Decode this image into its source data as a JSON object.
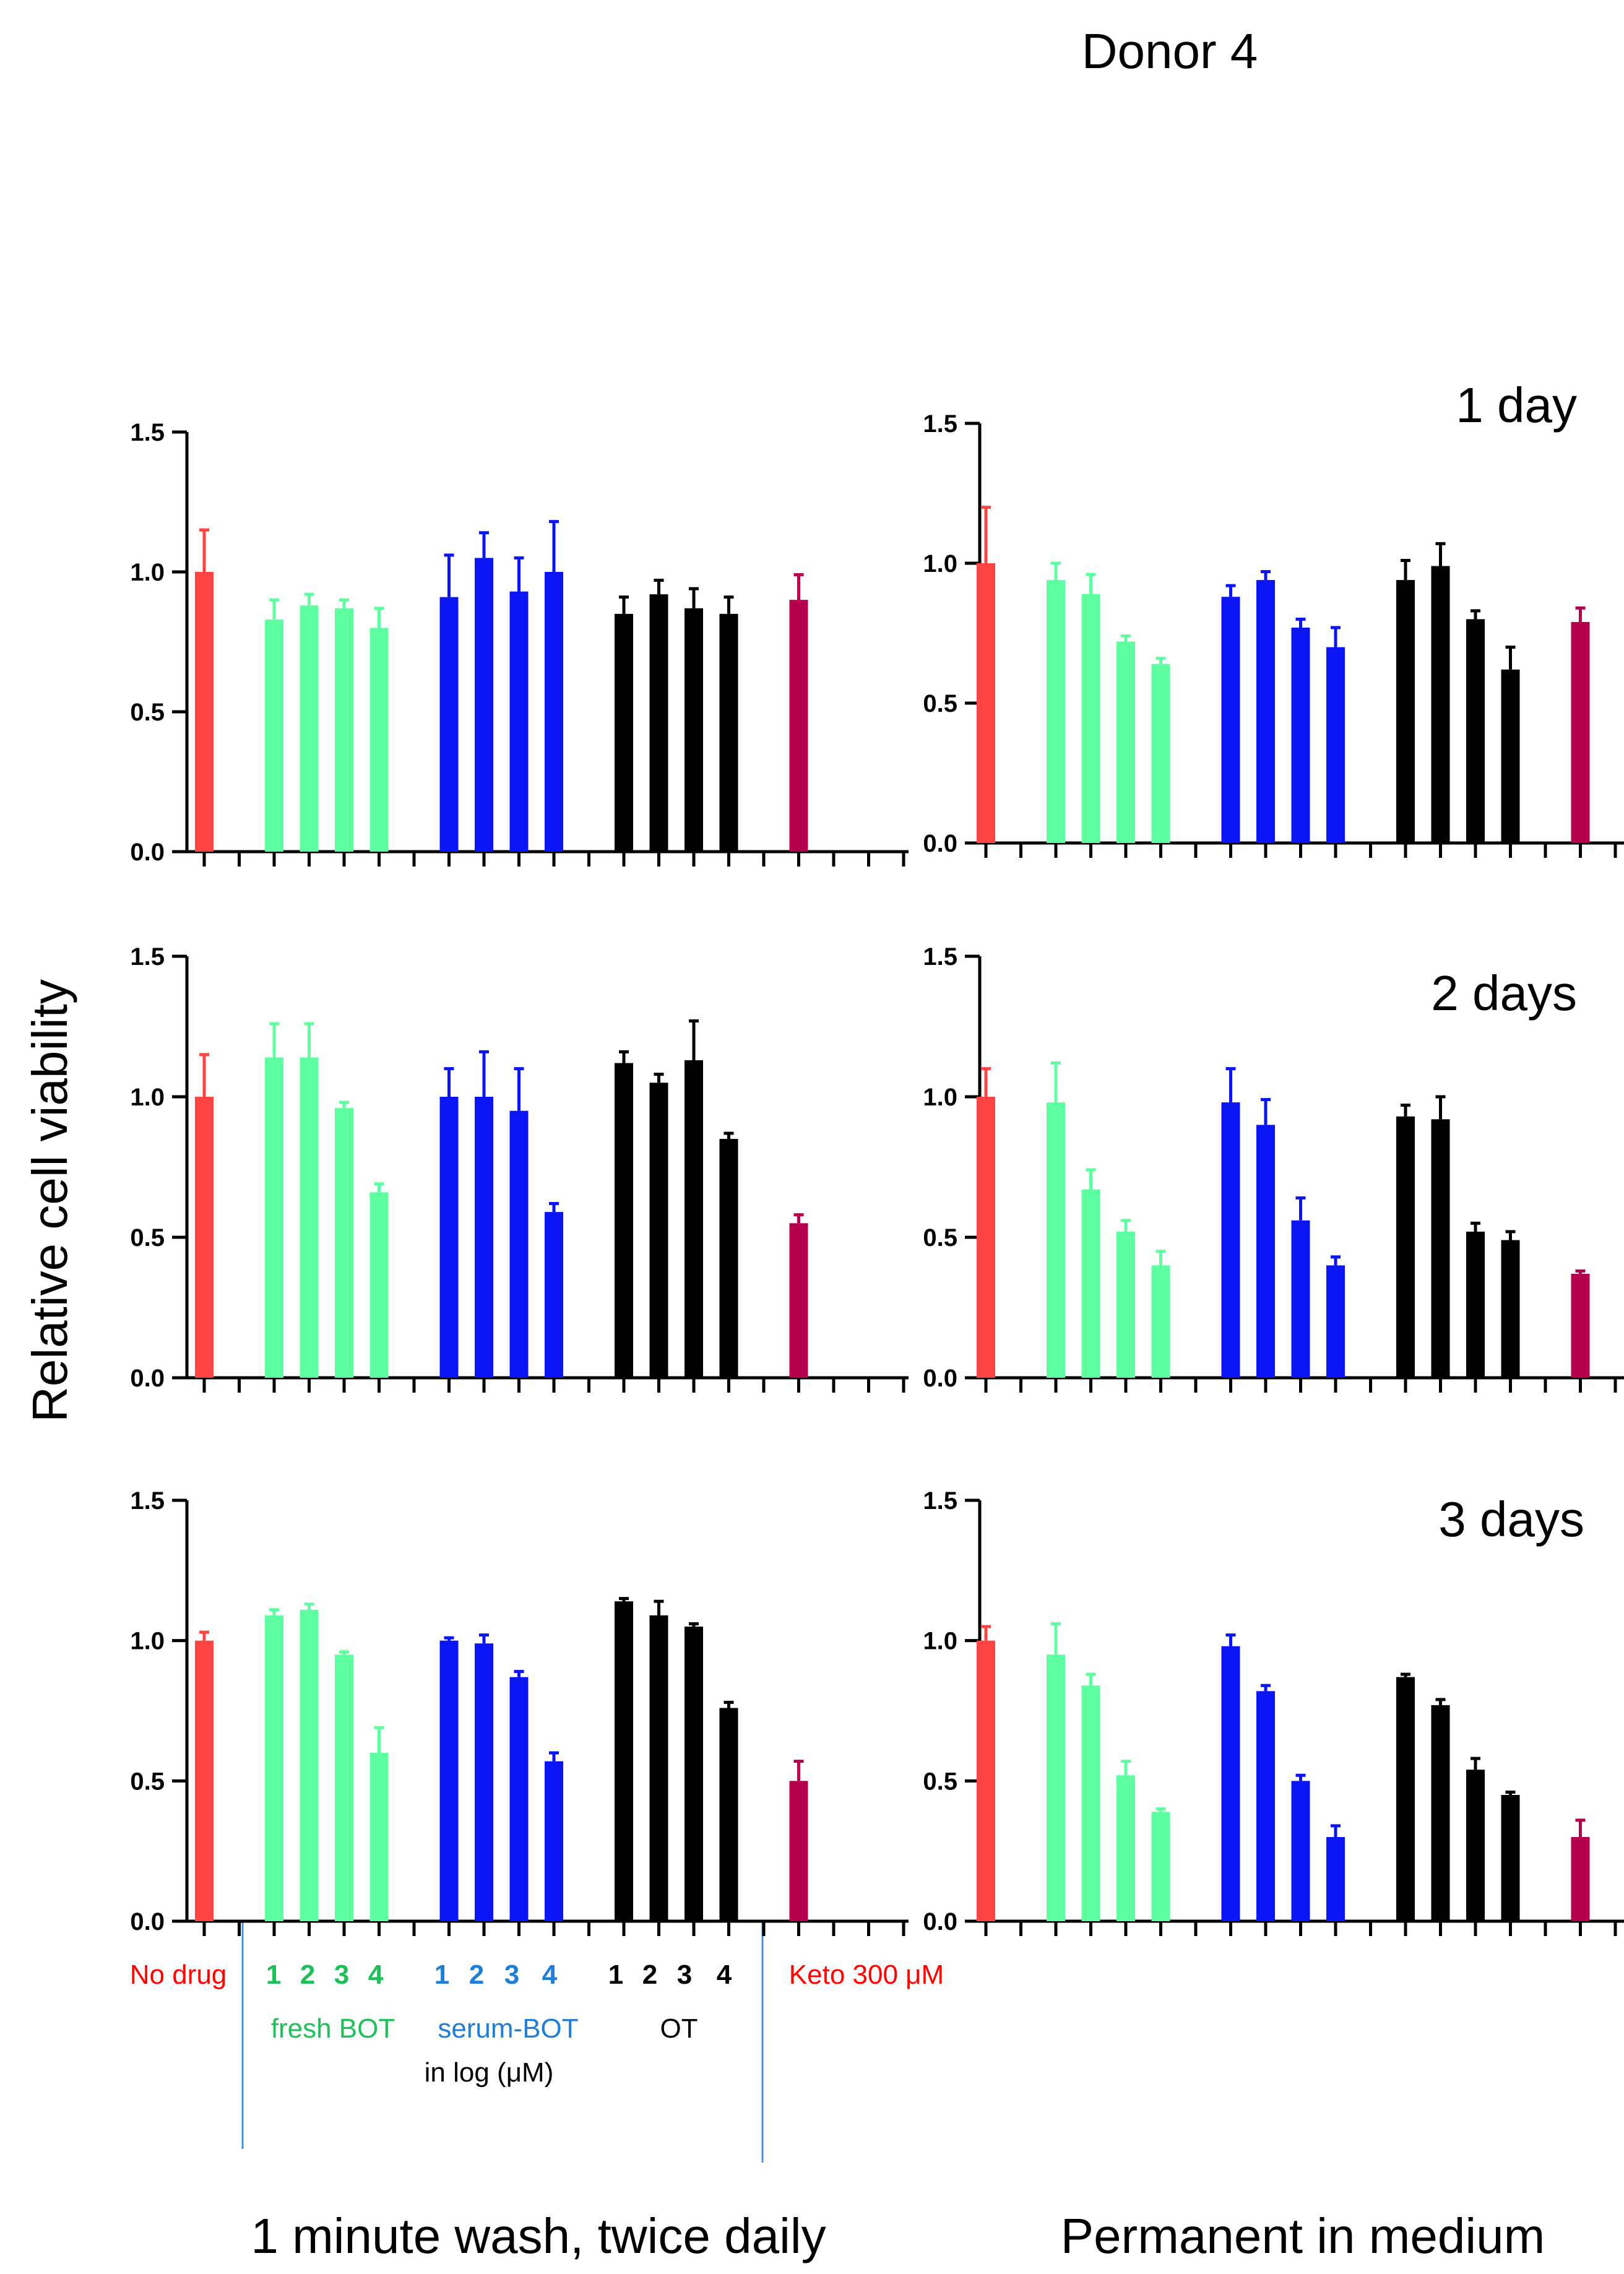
{
  "figure": {
    "title": "Donor 4",
    "ylabel": "Relative cell viability",
    "column_titles": [
      "1 minute wash, twice daily",
      "Permanent in medium"
    ],
    "row_labels": [
      "1 day",
      "2 days",
      "3 days"
    ],
    "group_labels": {
      "no_drug": "No drug",
      "fresh_bot": "fresh BOT",
      "serum_bot": "serum-BOT",
      "ot": "OT",
      "units": "in log (μM)",
      "keto": "Keto 300 μM",
      "conc_levels": [
        "1",
        "2",
        "3",
        "4"
      ]
    }
  },
  "colors": {
    "no_drug": "#ff4444",
    "fresh_bot": "#5effa0",
    "serum_bot": "#0a14f5",
    "ot": "#000000",
    "keto": "#b5004e",
    "fresh_label": "#1fbf5a",
    "serum_label": "#1f7fd6",
    "red_label": "#ff0000",
    "divider": "#4a90e2"
  },
  "chart_data": [
    {
      "type": "bar",
      "panel": "wash-day1",
      "row_label": "",
      "ylim": [
        0,
        1.5
      ],
      "yticks": [
        "0.0",
        "0.5",
        "1.0",
        "1.5"
      ],
      "categories": [
        "No drug",
        "fresh BOT 1",
        "fresh BOT 2",
        "fresh BOT 3",
        "fresh BOT 4",
        "serum-BOT 1",
        "serum-BOT 2",
        "serum-BOT 3",
        "serum-BOT 4",
        "OT 1",
        "OT 2",
        "OT 3",
        "OT 4",
        "Keto 300 μM"
      ],
      "groups": [
        "no_drug",
        "fresh_bot",
        "fresh_bot",
        "fresh_bot",
        "fresh_bot",
        "serum_bot",
        "serum_bot",
        "serum_bot",
        "serum_bot",
        "ot",
        "ot",
        "ot",
        "ot",
        "keto"
      ],
      "values": [
        1.0,
        0.83,
        0.88,
        0.87,
        0.8,
        0.91,
        1.05,
        0.93,
        1.0,
        0.85,
        0.92,
        0.87,
        0.85,
        0.9
      ],
      "errors": [
        0.15,
        0.07,
        0.04,
        0.03,
        0.07,
        0.15,
        0.09,
        0.12,
        0.18,
        0.06,
        0.05,
        0.07,
        0.06,
        0.09
      ]
    },
    {
      "type": "bar",
      "panel": "perm-day1",
      "row_label": "1 day",
      "ylim": [
        0,
        1.5
      ],
      "yticks": [
        "0.0",
        "0.5",
        "1.0",
        "1.5"
      ],
      "categories": [
        "No drug",
        "fresh BOT 1",
        "fresh BOT 2",
        "fresh BOT 3",
        "fresh BOT 4",
        "serum-BOT 1",
        "serum-BOT 2",
        "serum-BOT 3",
        "serum-BOT 4",
        "OT 1",
        "OT 2",
        "OT 3",
        "OT 4",
        "Keto 300 μM"
      ],
      "groups": [
        "no_drug",
        "fresh_bot",
        "fresh_bot",
        "fresh_bot",
        "fresh_bot",
        "serum_bot",
        "serum_bot",
        "serum_bot",
        "serum_bot",
        "ot",
        "ot",
        "ot",
        "ot",
        "keto"
      ],
      "values": [
        1.0,
        0.94,
        0.89,
        0.72,
        0.64,
        0.88,
        0.94,
        0.77,
        0.7,
        0.94,
        0.99,
        0.8,
        0.62,
        0.79
      ],
      "errors": [
        0.2,
        0.06,
        0.07,
        0.02,
        0.02,
        0.04,
        0.03,
        0.03,
        0.07,
        0.07,
        0.08,
        0.03,
        0.08,
        0.05
      ]
    },
    {
      "type": "bar",
      "panel": "wash-day2",
      "row_label": "",
      "ylim": [
        0,
        1.5
      ],
      "yticks": [
        "0.0",
        "0.5",
        "1.0",
        "1.5"
      ],
      "categories": [
        "No drug",
        "fresh BOT 1",
        "fresh BOT 2",
        "fresh BOT 3",
        "fresh BOT 4",
        "serum-BOT 1",
        "serum-BOT 2",
        "serum-BOT 3",
        "serum-BOT 4",
        "OT 1",
        "OT 2",
        "OT 3",
        "OT 4",
        "Keto 300 μM"
      ],
      "groups": [
        "no_drug",
        "fresh_bot",
        "fresh_bot",
        "fresh_bot",
        "fresh_bot",
        "serum_bot",
        "serum_bot",
        "serum_bot",
        "serum_bot",
        "ot",
        "ot",
        "ot",
        "ot",
        "keto"
      ],
      "values": [
        1.0,
        1.14,
        1.14,
        0.96,
        0.66,
        1.0,
        1.0,
        0.95,
        0.59,
        1.12,
        1.05,
        1.13,
        0.85,
        0.55
      ],
      "errors": [
        0.15,
        0.12,
        0.12,
        0.02,
        0.03,
        0.1,
        0.16,
        0.15,
        0.03,
        0.04,
        0.03,
        0.14,
        0.02,
        0.03
      ]
    },
    {
      "type": "bar",
      "panel": "perm-day2",
      "row_label": "2 days",
      "ylim": [
        0,
        1.5
      ],
      "yticks": [
        "0.0",
        "0.5",
        "1.0",
        "1.5"
      ],
      "categories": [
        "No drug",
        "fresh BOT 1",
        "fresh BOT 2",
        "fresh BOT 3",
        "fresh BOT 4",
        "serum-BOT 1",
        "serum-BOT 2",
        "serum-BOT 3",
        "serum-BOT 4",
        "OT 1",
        "OT 2",
        "OT 3",
        "OT 4",
        "Keto 300 μM"
      ],
      "groups": [
        "no_drug",
        "fresh_bot",
        "fresh_bot",
        "fresh_bot",
        "fresh_bot",
        "serum_bot",
        "serum_bot",
        "serum_bot",
        "serum_bot",
        "ot",
        "ot",
        "ot",
        "ot",
        "keto"
      ],
      "values": [
        1.0,
        0.98,
        0.67,
        0.52,
        0.4,
        0.98,
        0.9,
        0.56,
        0.4,
        0.93,
        0.92,
        0.52,
        0.49,
        0.37
      ],
      "errors": [
        0.1,
        0.14,
        0.07,
        0.04,
        0.05,
        0.12,
        0.09,
        0.08,
        0.03,
        0.04,
        0.08,
        0.03,
        0.03,
        0.01
      ]
    },
    {
      "type": "bar",
      "panel": "wash-day3",
      "row_label": "",
      "ylim": [
        0,
        1.5
      ],
      "yticks": [
        "0.0",
        "0.5",
        "1.0",
        "1.5"
      ],
      "categories": [
        "No drug",
        "fresh BOT 1",
        "fresh BOT 2",
        "fresh BOT 3",
        "fresh BOT 4",
        "serum-BOT 1",
        "serum-BOT 2",
        "serum-BOT 3",
        "serum-BOT 4",
        "OT 1",
        "OT 2",
        "OT 3",
        "OT 4",
        "Keto 300 μM"
      ],
      "groups": [
        "no_drug",
        "fresh_bot",
        "fresh_bot",
        "fresh_bot",
        "fresh_bot",
        "serum_bot",
        "serum_bot",
        "serum_bot",
        "serum_bot",
        "ot",
        "ot",
        "ot",
        "ot",
        "keto"
      ],
      "values": [
        1.0,
        1.09,
        1.11,
        0.95,
        0.6,
        1.0,
        0.99,
        0.87,
        0.57,
        1.14,
        1.09,
        1.05,
        0.76,
        0.5
      ],
      "errors": [
        0.03,
        0.02,
        0.02,
        0.01,
        0.09,
        0.01,
        0.03,
        0.02,
        0.03,
        0.01,
        0.05,
        0.01,
        0.02,
        0.07
      ]
    },
    {
      "type": "bar",
      "panel": "perm-day3",
      "row_label": "3 days",
      "ylim": [
        0,
        1.5
      ],
      "yticks": [
        "0.0",
        "0.5",
        "1.0",
        "1.5"
      ],
      "categories": [
        "No drug",
        "fresh BOT 1",
        "fresh BOT 2",
        "fresh BOT 3",
        "fresh BOT 4",
        "serum-BOT 1",
        "serum-BOT 2",
        "serum-BOT 3",
        "serum-BOT 4",
        "OT 1",
        "OT 2",
        "OT 3",
        "OT 4",
        "Keto 300 μM"
      ],
      "groups": [
        "no_drug",
        "fresh_bot",
        "fresh_bot",
        "fresh_bot",
        "fresh_bot",
        "serum_bot",
        "serum_bot",
        "serum_bot",
        "serum_bot",
        "ot",
        "ot",
        "ot",
        "ot",
        "keto"
      ],
      "values": [
        1.0,
        0.95,
        0.84,
        0.52,
        0.39,
        0.98,
        0.82,
        0.5,
        0.3,
        0.87,
        0.77,
        0.54,
        0.45,
        0.3
      ],
      "errors": [
        0.05,
        0.11,
        0.04,
        0.05,
        0.01,
        0.04,
        0.02,
        0.02,
        0.04,
        0.01,
        0.02,
        0.04,
        0.01,
        0.06
      ]
    }
  ]
}
